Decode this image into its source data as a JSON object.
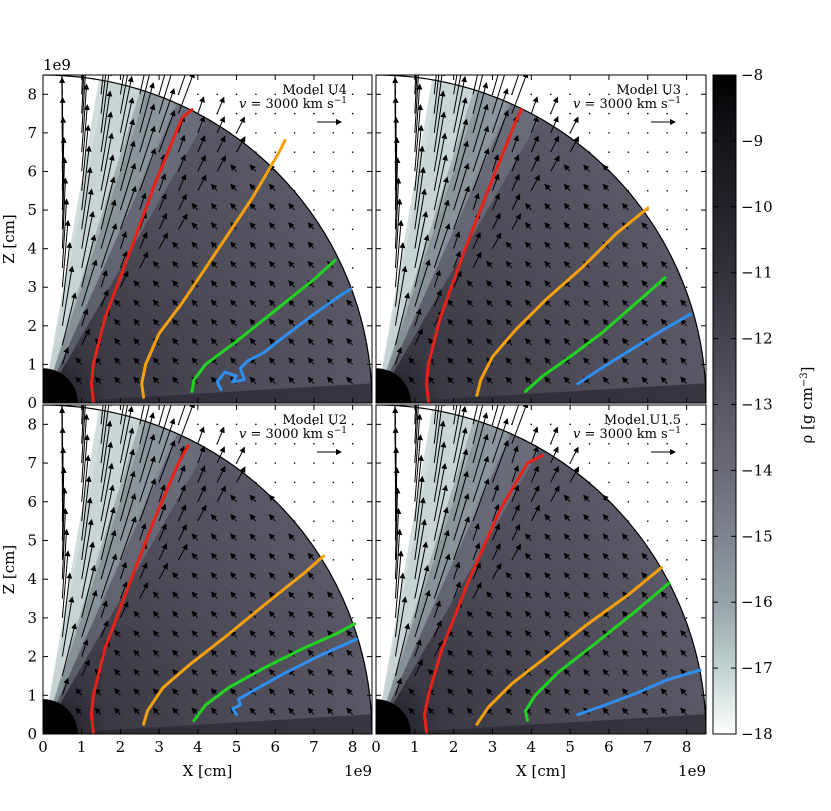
{
  "chart_data": {
    "type": "field-map",
    "description_units": {
      "x": "X [cm] ×1e9",
      "z": "Z [cm] ×1e9"
    },
    "xlim": [
      0,
      8.5
    ],
    "ylim": [
      0,
      8.5
    ],
    "x_ticks": [
      "0",
      "1",
      "2",
      "3",
      "4",
      "5",
      "6",
      "7",
      "8"
    ],
    "y_ticks": [
      "0",
      "1",
      "2",
      "3",
      "4",
      "5",
      "6",
      "7",
      "8"
    ],
    "offset_label": "1e9",
    "xlabel": "X [cm]",
    "ylabel": "Z [cm]",
    "outer_radius": 8.5,
    "star_radius": 0.9,
    "panels": [
      {
        "model": "Model U4",
        "velocity_label": "v = 3000 km s",
        "velocity_exp": "−1",
        "streamlines": [
          {
            "color": "#e8211a",
            "points": [
              [
                1.3,
                0.05
              ],
              [
                1.25,
                0.5
              ],
              [
                1.3,
                1.0
              ],
              [
                1.6,
                2.2
              ],
              [
                2.2,
                3.8
              ],
              [
                2.9,
                5.7
              ],
              [
                3.6,
                7.4
              ],
              [
                3.85,
                7.6
              ]
            ]
          },
          {
            "color": "#f5a00f",
            "points": [
              [
                2.6,
                0.15
              ],
              [
                2.55,
                0.5
              ],
              [
                2.65,
                1.0
              ],
              [
                3.0,
                1.8
              ],
              [
                3.6,
                2.6
              ],
              [
                4.4,
                3.8
              ],
              [
                5.4,
                5.3
              ],
              [
                6.1,
                6.5
              ],
              [
                6.25,
                6.8
              ]
            ]
          },
          {
            "color": "#21d321",
            "points": [
              [
                3.85,
                0.3
              ],
              [
                3.9,
                0.6
              ],
              [
                4.2,
                1.0
              ],
              [
                5.0,
                1.6
              ],
              [
                6.0,
                2.4
              ],
              [
                7.0,
                3.2
              ],
              [
                7.55,
                3.7
              ]
            ]
          },
          {
            "color": "#2f8ef0",
            "points": [
              [
                4.6,
                0.35
              ],
              [
                4.5,
                0.55
              ],
              [
                4.7,
                0.8
              ],
              [
                5.0,
                0.7
              ],
              [
                4.9,
                0.55
              ],
              [
                5.2,
                0.6
              ],
              [
                5.1,
                0.9
              ],
              [
                5.3,
                1.1
              ],
              [
                5.7,
                1.3
              ],
              [
                6.2,
                1.7
              ],
              [
                7.0,
                2.3
              ],
              [
                7.7,
                2.8
              ],
              [
                7.95,
                2.95
              ]
            ]
          }
        ]
      },
      {
        "model": "Model U3",
        "velocity_label": "v = 3000 km s",
        "velocity_exp": "−1",
        "streamlines": [
          {
            "color": "#e8211a",
            "points": [
              [
                1.35,
                0.05
              ],
              [
                1.3,
                0.5
              ],
              [
                1.35,
                1.0
              ],
              [
                1.65,
                2.2
              ],
              [
                2.3,
                4.0
              ],
              [
                3.0,
                5.8
              ],
              [
                3.6,
                7.3
              ],
              [
                3.75,
                7.6
              ]
            ]
          },
          {
            "color": "#f5a00f",
            "points": [
              [
                2.6,
                0.2
              ],
              [
                2.7,
                0.6
              ],
              [
                3.0,
                1.2
              ],
              [
                3.6,
                1.9
              ],
              [
                4.4,
                2.7
              ],
              [
                5.3,
                3.5
              ],
              [
                6.2,
                4.4
              ],
              [
                7.0,
                5.05
              ]
            ]
          },
          {
            "color": "#21d321",
            "points": [
              [
                3.85,
                0.3
              ],
              [
                4.3,
                0.7
              ],
              [
                5.0,
                1.2
              ],
              [
                5.8,
                1.8
              ],
              [
                6.6,
                2.5
              ],
              [
                7.45,
                3.25
              ]
            ]
          },
          {
            "color": "#2f8ef0",
            "points": [
              [
                5.2,
                0.5
              ],
              [
                5.8,
                0.9
              ],
              [
                6.6,
                1.4
              ],
              [
                7.4,
                1.9
              ],
              [
                8.1,
                2.3
              ]
            ]
          }
        ]
      },
      {
        "model": "Model U2",
        "velocity_label": "v = 3000 km s",
        "velocity_exp": "−1",
        "streamlines": [
          {
            "color": "#e8211a",
            "points": [
              [
                1.3,
                0.05
              ],
              [
                1.25,
                0.5
              ],
              [
                1.3,
                1.0
              ],
              [
                1.6,
                2.2
              ],
              [
                2.2,
                3.8
              ],
              [
                2.9,
                5.6
              ],
              [
                3.5,
                7.0
              ],
              [
                3.75,
                7.45
              ]
            ]
          },
          {
            "color": "#f5a00f",
            "points": [
              [
                2.6,
                0.25
              ],
              [
                2.7,
                0.6
              ],
              [
                3.1,
                1.2
              ],
              [
                3.8,
                1.8
              ],
              [
                4.7,
                2.5
              ],
              [
                5.8,
                3.4
              ],
              [
                6.8,
                4.2
              ],
              [
                7.25,
                4.6
              ]
            ]
          },
          {
            "color": "#21d321",
            "points": [
              [
                3.9,
                0.35
              ],
              [
                4.2,
                0.75
              ],
              [
                4.8,
                1.2
              ],
              [
                5.7,
                1.7
              ],
              [
                6.7,
                2.2
              ],
              [
                7.6,
                2.6
              ],
              [
                8.05,
                2.85
              ]
            ]
          },
          {
            "color": "#2f8ef0",
            "points": [
              [
                5.0,
                0.5
              ],
              [
                4.9,
                0.65
              ],
              [
                5.1,
                0.75
              ],
              [
                5.05,
                0.9
              ],
              [
                5.4,
                1.1
              ],
              [
                6.2,
                1.55
              ],
              [
                7.2,
                2.05
              ],
              [
                8.1,
                2.45
              ]
            ]
          }
        ]
      },
      {
        "model": "Model U1.5",
        "velocity_label": "v = 3000 km s",
        "velocity_exp": "−1",
        "streamlines": [
          {
            "color": "#e8211a",
            "points": [
              [
                1.3,
                0.05
              ],
              [
                1.25,
                0.5
              ],
              [
                1.35,
                1.0
              ],
              [
                1.7,
                2.2
              ],
              [
                2.4,
                4.0
              ],
              [
                3.2,
                5.8
              ],
              [
                3.9,
                7.0
              ],
              [
                4.3,
                7.2
              ]
            ]
          },
          {
            "color": "#f5a00f",
            "points": [
              [
                2.6,
                0.25
              ],
              [
                2.9,
                0.7
              ],
              [
                3.5,
                1.3
              ],
              [
                4.4,
                2.0
              ],
              [
                5.4,
                2.8
              ],
              [
                6.5,
                3.6
              ],
              [
                7.35,
                4.3
              ]
            ]
          },
          {
            "color": "#21d321",
            "points": [
              [
                3.9,
                0.35
              ],
              [
                3.85,
                0.6
              ],
              [
                4.1,
                1.0
              ],
              [
                4.7,
                1.6
              ],
              [
                5.6,
                2.3
              ],
              [
                6.6,
                3.1
              ],
              [
                7.55,
                3.9
              ]
            ]
          },
          {
            "color": "#2f8ef0",
            "points": [
              [
                5.2,
                0.5
              ],
              [
                5.9,
                0.75
              ],
              [
                6.7,
                1.05
              ],
              [
                7.5,
                1.4
              ],
              [
                8.35,
                1.65
              ]
            ]
          }
        ]
      }
    ],
    "colorbar": {
      "label": "ρ [g cm",
      "label_exp": "−3",
      "label_suffix": "]",
      "range": [
        -18,
        -8
      ],
      "ticks": [
        "−8",
        "−9",
        "−10",
        "−11",
        "−12",
        "−13",
        "−14",
        "−15",
        "−16",
        "−17",
        "−18"
      ],
      "colors": [
        "#000000",
        "#17141b",
        "#24212a",
        "#333039",
        "#464450",
        "#595764",
        "#6a6a77",
        "#7e8490",
        "#95a2a8",
        "#bfd2d0",
        "#ffffff"
      ]
    }
  }
}
